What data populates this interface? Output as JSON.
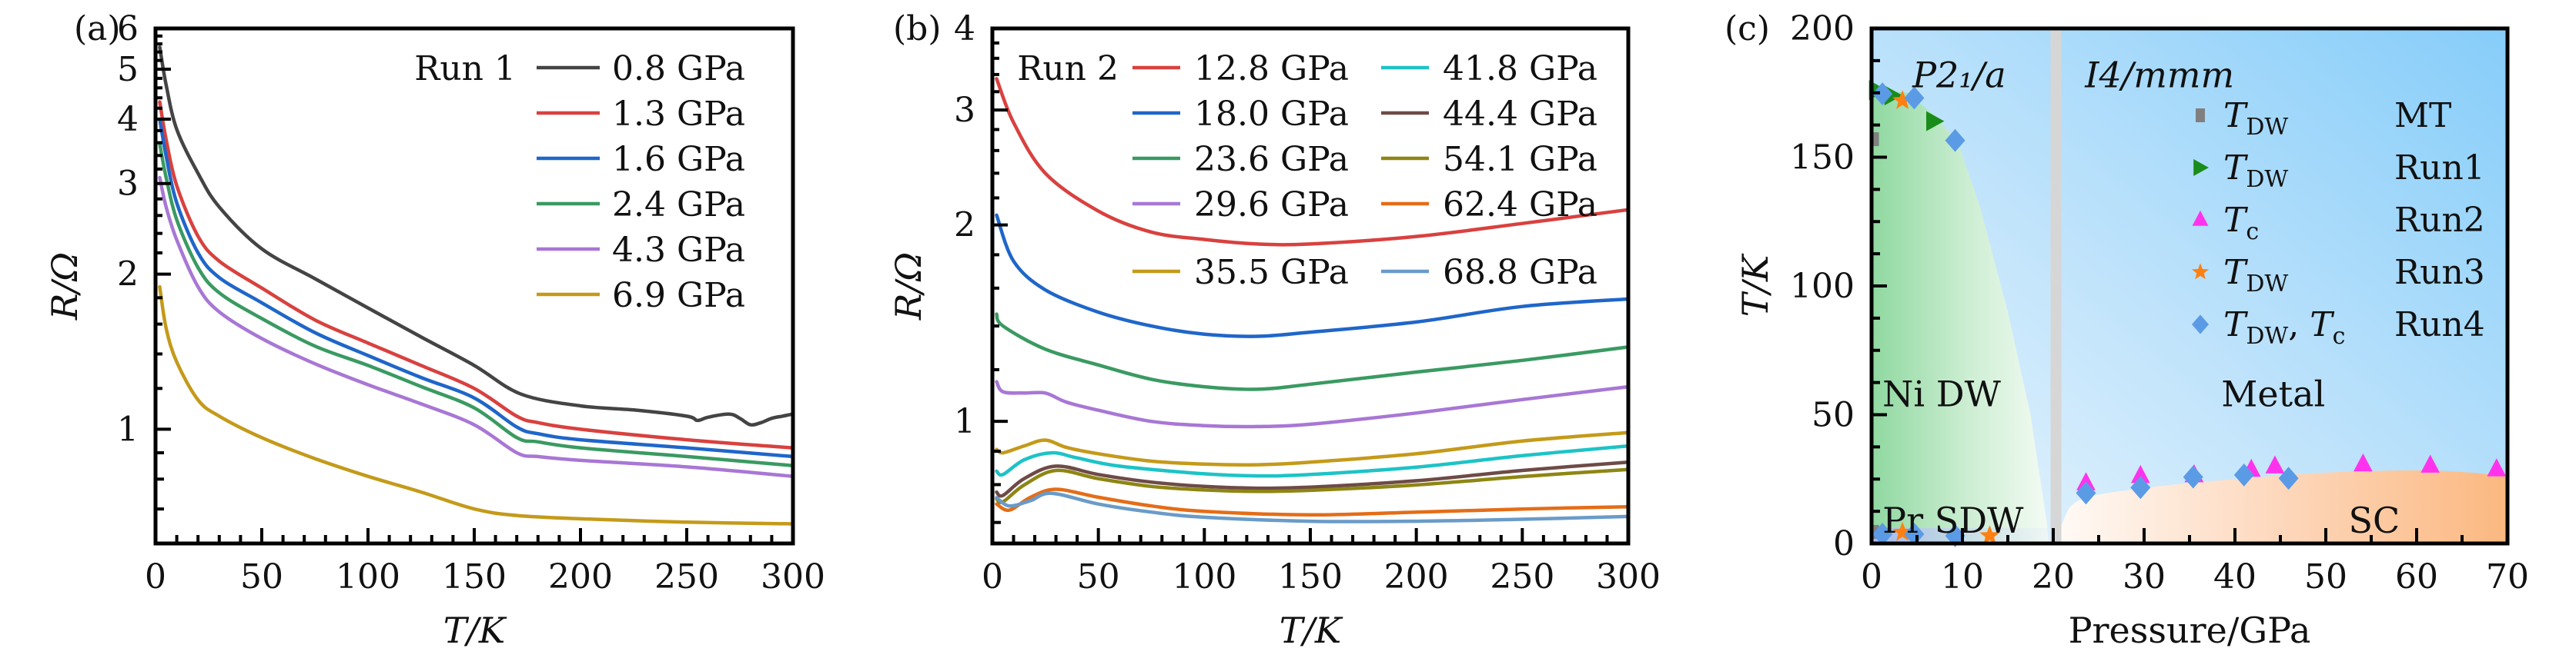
{
  "chart_data": [
    {
      "id": "a",
      "type": "line",
      "panel_label": "(a)",
      "xlabel": "T/K",
      "ylabel": "R/Ω",
      "xlim": [
        0,
        300
      ],
      "ylim": [
        0.6,
        6
      ],
      "yscale": "log",
      "xticks": [
        0,
        50,
        100,
        150,
        200,
        250,
        300
      ],
      "yticks": [
        1,
        2,
        3,
        4,
        5,
        6
      ],
      "legend_title": "Run 1",
      "legend_position": "top-right",
      "series": [
        {
          "name": "0.8 GPa",
          "color": "#444444",
          "x": [
            2,
            5,
            10,
            20,
            30,
            50,
            75,
            100,
            125,
            150,
            172,
            200,
            225,
            250,
            255,
            260,
            270,
            275,
            280,
            285,
            290,
            295,
            300
          ],
          "y": [
            5.52,
            4.66,
            3.82,
            3.14,
            2.7,
            2.24,
            1.96,
            1.72,
            1.51,
            1.33,
            1.17,
            1.11,
            1.09,
            1.06,
            1.04,
            1.055,
            1.07,
            1.05,
            1.02,
            1.03,
            1.05,
            1.06,
            1.07
          ]
        },
        {
          "name": "1.3 GPa",
          "color": "#d8413f",
          "x": [
            2,
            5,
            10,
            20,
            30,
            50,
            75,
            100,
            125,
            150,
            170,
            180,
            200,
            250,
            300
          ],
          "y": [
            4.32,
            3.65,
            2.97,
            2.37,
            2.12,
            1.88,
            1.63,
            1.47,
            1.33,
            1.2,
            1.06,
            1.03,
            1.0,
            0.954,
            0.92
          ]
        },
        {
          "name": "1.6 GPa",
          "color": "#1f66c9",
          "x": [
            2,
            5,
            10,
            20,
            30,
            50,
            75,
            100,
            125,
            150,
            170,
            180,
            200,
            250,
            300
          ],
          "y": [
            4.0,
            3.39,
            2.75,
            2.2,
            1.97,
            1.76,
            1.54,
            1.39,
            1.26,
            1.15,
            1.01,
            0.98,
            0.954,
            0.92,
            0.885
          ]
        },
        {
          "name": "2.4 GPa",
          "color": "#3a9a62",
          "x": [
            2,
            5,
            10,
            20,
            30,
            50,
            75,
            100,
            125,
            150,
            170,
            180,
            200,
            250,
            300
          ],
          "y": [
            3.58,
            3.08,
            2.55,
            2.06,
            1.84,
            1.64,
            1.45,
            1.33,
            1.21,
            1.1,
            0.963,
            0.945,
            0.92,
            0.885,
            0.85
          ]
        },
        {
          "name": "4.3 GPa",
          "color": "#a877d5",
          "x": [
            2,
            5,
            10,
            20,
            30,
            50,
            75,
            100,
            125,
            150,
            170,
            180,
            200,
            250,
            300
          ],
          "y": [
            3.08,
            2.7,
            2.33,
            1.89,
            1.69,
            1.5,
            1.34,
            1.22,
            1.12,
            1.02,
            0.9,
            0.885,
            0.87,
            0.845,
            0.81
          ]
        },
        {
          "name": "6.9 GPa",
          "color": "#c49a1a",
          "x": [
            2,
            5,
            10,
            20,
            30,
            50,
            75,
            100,
            125,
            150,
            170,
            200,
            250,
            300
          ],
          "y": [
            1.89,
            1.57,
            1.35,
            1.14,
            1.06,
            0.963,
            0.877,
            0.81,
            0.755,
            0.7,
            0.68,
            0.67,
            0.66,
            0.655
          ]
        }
      ]
    },
    {
      "id": "b",
      "type": "line",
      "panel_label": "(b)",
      "xlabel": "T/K",
      "ylabel": "R/Ω",
      "xlim": [
        0,
        300
      ],
      "ylim": [
        0.65,
        4
      ],
      "yscale": "log",
      "xticks": [
        0,
        50,
        100,
        150,
        200,
        250,
        300
      ],
      "yticks": [
        1,
        2,
        3,
        4
      ],
      "legend_title": "Run 2",
      "legend_position": "top",
      "series": [
        {
          "name": "12.8 GPa",
          "color": "#d8413f",
          "x": [
            2,
            10,
            25,
            50,
            75,
            100,
            125,
            150,
            200,
            250,
            300
          ],
          "y": [
            3.35,
            2.87,
            2.4,
            2.1,
            1.95,
            1.9,
            1.87,
            1.87,
            1.92,
            2.01,
            2.11
          ]
        },
        {
          "name": "18.0 GPa",
          "color": "#1f66c9",
          "x": [
            2,
            10,
            25,
            50,
            75,
            100,
            125,
            150,
            200,
            250,
            300
          ],
          "y": [
            2.07,
            1.76,
            1.59,
            1.47,
            1.4,
            1.36,
            1.35,
            1.37,
            1.42,
            1.5,
            1.54
          ]
        },
        {
          "name": "23.6 GPa",
          "color": "#3a9a62",
          "x": [
            2,
            5,
            25,
            50,
            75,
            100,
            125,
            150,
            200,
            250,
            300
          ],
          "y": [
            1.46,
            1.4,
            1.29,
            1.22,
            1.16,
            1.13,
            1.12,
            1.14,
            1.19,
            1.24,
            1.3
          ]
        },
        {
          "name": "29.6 GPa",
          "color": "#a877d5",
          "x": [
            2,
            5,
            15,
            25,
            35,
            50,
            75,
            100,
            125,
            150,
            200,
            250,
            300
          ],
          "y": [
            1.15,
            1.11,
            1.105,
            1.105,
            1.07,
            1.04,
            1.0,
            0.985,
            0.982,
            0.99,
            1.03,
            1.08,
            1.13
          ]
        },
        {
          "name": "35.5 GPa",
          "color": "#c49a1a",
          "x": [
            2,
            5,
            15,
            25,
            35,
            50,
            75,
            100,
            125,
            150,
            200,
            250,
            300
          ],
          "y": [
            0.906,
            0.895,
            0.917,
            0.936,
            0.912,
            0.892,
            0.869,
            0.86,
            0.858,
            0.866,
            0.892,
            0.933,
            0.961
          ]
        },
        {
          "name": "41.8 GPa",
          "color": "#1dc3c6",
          "x": [
            2,
            5,
            15,
            28,
            40,
            60,
            100,
            125,
            150,
            200,
            250,
            300
          ],
          "y": [
            0.839,
            0.829,
            0.873,
            0.895,
            0.879,
            0.854,
            0.831,
            0.825,
            0.829,
            0.851,
            0.886,
            0.917
          ]
        },
        {
          "name": "44.4 GPa",
          "color": "#6e4b47",
          "x": [
            2,
            5,
            15,
            30,
            50,
            75,
            100,
            125,
            150,
            200,
            250,
            300
          ],
          "y": [
            0.779,
            0.77,
            0.817,
            0.854,
            0.829,
            0.807,
            0.795,
            0.79,
            0.793,
            0.811,
            0.841,
            0.866
          ]
        },
        {
          "name": "54.1 GPa",
          "color": "#8e8613",
          "x": [
            2,
            5,
            15,
            30,
            50,
            75,
            100,
            125,
            150,
            200,
            250,
            300
          ],
          "y": [
            0.761,
            0.753,
            0.799,
            0.841,
            0.817,
            0.795,
            0.785,
            0.781,
            0.784,
            0.799,
            0.823,
            0.844
          ]
        },
        {
          "name": "62.4 GPa",
          "color": "#e46d17",
          "x": [
            2,
            8,
            18,
            30,
            50,
            75,
            100,
            150,
            200,
            250,
            300
          ],
          "y": [
            0.747,
            0.731,
            0.765,
            0.787,
            0.765,
            0.742,
            0.728,
            0.719,
            0.726,
            0.734,
            0.74
          ]
        },
        {
          "name": "68.8 GPa",
          "color": "#6a9bc8",
          "x": [
            2,
            8,
            18,
            28,
            50,
            75,
            100,
            150,
            200,
            250,
            300
          ],
          "y": [
            0.764,
            0.742,
            0.756,
            0.776,
            0.747,
            0.726,
            0.713,
            0.703,
            0.703,
            0.708,
            0.715
          ]
        }
      ]
    },
    {
      "id": "c",
      "type": "scatter",
      "panel_label": "(c)",
      "xlabel": "Pressure/GPa",
      "ylabel": "T/K",
      "xlim": [
        0,
        70
      ],
      "ylim": [
        0,
        200
      ],
      "xticks": [
        0,
        10,
        20,
        30,
        40,
        50,
        60,
        70
      ],
      "yticks": [
        0,
        50,
        100,
        150,
        200
      ],
      "legend_position": "top-right",
      "phase_boundary_pressure": 20.3,
      "region_labels": [
        {
          "text": "P2₁/a",
          "italic": true,
          "x": 4.5,
          "y": 182
        },
        {
          "text": "I4/mmm",
          "italic": true,
          "x": 23.5,
          "y": 182
        },
        {
          "text": "Ni DW",
          "italic": false,
          "x": 1.2,
          "y": 58
        },
        {
          "text": "Metal",
          "italic": false,
          "x": 38.5,
          "y": 58
        },
        {
          "text": "Pr SDW",
          "italic": false,
          "x": 1.2,
          "y": 9
        },
        {
          "text": "SC",
          "italic": false,
          "x": 52.5,
          "y": 9
        }
      ],
      "series": [
        {
          "name": "T_DW",
          "run": "MT",
          "marker": "square",
          "color": "#808080",
          "points": [
            [
              0.3,
              157
            ],
            [
              0.3,
              4.5
            ]
          ]
        },
        {
          "name": "T_DW",
          "run": "Run1",
          "marker": "triangle-right",
          "color": "#1a8c1a",
          "points": [
            [
              0.6,
              176
            ],
            [
              1.9,
              174.6
            ],
            [
              2.3,
              174
            ],
            [
              6.9,
              164
            ]
          ]
        },
        {
          "name": "T_c",
          "run": "Run2",
          "marker": "triangle-up",
          "color": "#ff33ee",
          "points": [
            [
              23.6,
              23.4
            ],
            [
              29.6,
              26.2
            ],
            [
              35.5,
              26.5
            ],
            [
              41.8,
              28.6
            ],
            [
              44.4,
              29.9
            ],
            [
              54.1,
              30.7
            ],
            [
              61.5,
              30.2
            ],
            [
              68.8,
              28.8
            ]
          ]
        },
        {
          "name": "T_DW",
          "run": "Run3",
          "marker": "star",
          "color": "#ff8010",
          "points": [
            [
              3.4,
              172
            ],
            [
              3.4,
              4.3
            ],
            [
              13.0,
              3.0
            ]
          ]
        },
        {
          "name": "T_DW, T_c",
          "run": "Run4",
          "marker": "diamond",
          "color": "#5b9be6",
          "points": [
            [
              1.2,
              174.6
            ],
            [
              4.7,
              173
            ],
            [
              9.2,
              156.5
            ],
            [
              1.2,
              3.6
            ],
            [
              4.7,
              3.6
            ],
            [
              9.2,
              3.0
            ],
            [
              23.6,
              19.6
            ],
            [
              29.6,
              21.7
            ],
            [
              35.4,
              25.8
            ],
            [
              41.0,
              26.6
            ],
            [
              45.9,
              25.3
            ]
          ]
        }
      ],
      "legend": [
        {
          "symbol": "T",
          "sub": "DW",
          "run": "MT"
        },
        {
          "symbol": "T",
          "sub": "DW",
          "run": "Run1"
        },
        {
          "symbol": "T",
          "sub": "c",
          "run": "Run2"
        },
        {
          "symbol": "T",
          "sub": "DW",
          "run": "Run3"
        },
        {
          "symbol": "T",
          "sub": "DW, T_c",
          "run": "Run4"
        }
      ],
      "dw_dome": [
        [
          0,
          176
        ],
        [
          4,
          175
        ],
        [
          7,
          166
        ],
        [
          9.5,
          156
        ],
        [
          12,
          130
        ],
        [
          15,
          90
        ],
        [
          17.5,
          50
        ],
        [
          19.3,
          8
        ],
        [
          19.5,
          0
        ]
      ],
      "sc_dome": [
        [
          20.6,
          0
        ],
        [
          21,
          8
        ],
        [
          23,
          17
        ],
        [
          30,
          21.5
        ],
        [
          40,
          25
        ],
        [
          50,
          27.5
        ],
        [
          60,
          28.4
        ],
        [
          66,
          27.5
        ],
        [
          70,
          26
        ]
      ]
    }
  ]
}
